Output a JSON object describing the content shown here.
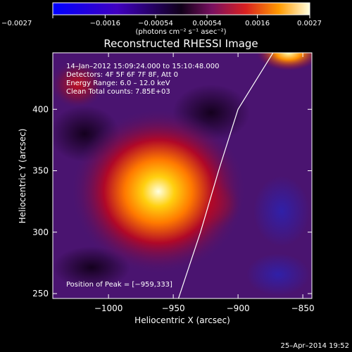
{
  "chart_data": {
    "type": "heatmap",
    "title": "Reconstructed RHESSI Image",
    "xlabel": "Heliocentric X (arcsec)",
    "ylabel": "Heliocentric Y (arcsec)",
    "xlim": [
      -1043,
      -843
    ],
    "ylim": [
      246,
      446
    ],
    "x_ticks": [
      {
        "value": -1000,
        "label": "−1000"
      },
      {
        "value": -950,
        "label": "−950"
      },
      {
        "value": -900,
        "label": "−900"
      },
      {
        "value": -850,
        "label": "−850"
      }
    ],
    "y_ticks": [
      {
        "value": 250,
        "label": "250"
      },
      {
        "value": 300,
        "label": "300"
      },
      {
        "value": 350,
        "label": "350"
      },
      {
        "value": 400,
        "label": "400"
      }
    ],
    "colorbar": {
      "range": [
        -0.0027,
        0.0027
      ],
      "tick_values": [
        -0.0027,
        -0.0016,
        -0.00054,
        0.00054,
        0.0016,
        0.0027
      ],
      "tick_labels": [
        "−0.0027",
        "−0.0016",
        "−0.00054",
        "0.00054",
        "0.0016",
        "0.0027"
      ],
      "unit_label": "(photons cm⁻² s⁻¹ asec⁻²)"
    },
    "annotations": {
      "time": "14–Jan–2012 15:09:24.000 to 15:10:48.000",
      "detectors": "Detectors: 4F 5F 6F 7F 8F, Att 0",
      "energy": "Energy Range: 6.0 – 12.0 keV",
      "clean": "Clean    Total counts: 7.85E+03",
      "peak": "Position of Peak = [−959,333]"
    },
    "peak": {
      "x": -959,
      "y": 333
    },
    "limb_curve": [
      [
        -946,
        246
      ],
      [
        -929,
        300
      ],
      [
        -915,
        350
      ],
      [
        -900,
        400
      ],
      [
        -873,
        446
      ]
    ],
    "footer_date": "25–Apr–2014 19:52"
  }
}
